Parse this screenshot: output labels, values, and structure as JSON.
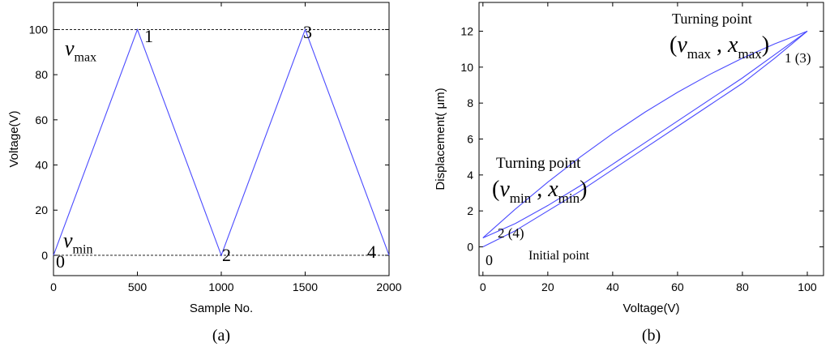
{
  "chart_data": [
    {
      "type": "line",
      "x": [
        0,
        500,
        1000,
        1500,
        2000
      ],
      "series": [
        {
          "color": "#4a4aff",
          "values": [
            0,
            100,
            0,
            100,
            0
          ]
        }
      ],
      "xlim": [
        0,
        2000
      ],
      "ylim": [
        -9,
        112
      ],
      "xticks": [
        0,
        500,
        1000,
        1500,
        2000
      ],
      "yticks": [
        0,
        20,
        40,
        60,
        80,
        100
      ],
      "hlines": [
        100,
        0
      ],
      "xlabel": "Sample No.",
      "ylabel": "Voltage(V)",
      "caption": "(a)",
      "annotations": [
        {
          "segments": [
            {
              "text": "1"
            }
          ]
        },
        {
          "segments": [
            {
              "text": "2"
            }
          ]
        },
        {
          "segments": [
            {
              "text": "3"
            }
          ]
        },
        {
          "segments": [
            {
              "text": "4"
            }
          ]
        },
        {
          "segments": [
            {
              "text": "0"
            }
          ]
        },
        {
          "segments": [
            {
              "text": "v",
              "style": "italic"
            },
            {
              "text": "max",
              "style": "sub"
            }
          ]
        },
        {
          "segments": [
            {
              "text": "v",
              "style": "italic"
            },
            {
              "text": "min",
              "style": "sub"
            }
          ]
        }
      ]
    },
    {
      "type": "line",
      "series": [
        {
          "color": "#4a4aff",
          "x": [
            0,
            10,
            20,
            30,
            40,
            50,
            60,
            70,
            80,
            90,
            100
          ],
          "values": [
            0,
            0.9,
            2.0,
            3.1,
            4.3,
            5.5,
            6.7,
            7.9,
            9.1,
            10.5,
            12
          ]
        },
        {
          "color": "#4a4aff",
          "x": [
            100,
            90,
            80,
            70,
            60,
            50,
            40,
            30,
            20,
            10,
            0
          ],
          "values": [
            12,
            11.3,
            10.5,
            9.6,
            8.6,
            7.5,
            6.3,
            5.0,
            3.6,
            2.1,
            0.5
          ]
        },
        {
          "color": "#4a4aff",
          "x": [
            0,
            10,
            20,
            30,
            40,
            50,
            60,
            70,
            80,
            90,
            100
          ],
          "values": [
            0.5,
            1.3,
            2.3,
            3.4,
            4.6,
            5.8,
            7.0,
            8.2,
            9.4,
            10.7,
            12
          ]
        }
      ],
      "xlim": [
        -1.2,
        105
      ],
      "ylim": [
        -1.6,
        13.6
      ],
      "xticks": [
        0,
        20,
        40,
        60,
        80,
        100
      ],
      "yticks": [
        0,
        2,
        4,
        6,
        8,
        10,
        12
      ],
      "xlabel": "Voltage(V)",
      "ylabel": "Displacement( μm)",
      "caption": "(b)",
      "annotations": [
        {
          "segments": [
            {
              "text": "Turning point"
            }
          ]
        },
        {
          "segments": [
            {
              "text": "("
            },
            {
              "text": "v",
              "style": "italic"
            },
            {
              "text": "max",
              "style": "sub"
            },
            {
              "text": " , "
            },
            {
              "text": "x",
              "style": "italic"
            },
            {
              "text": "max",
              "style": "sub"
            },
            {
              "text": ")"
            }
          ]
        },
        {
          "segments": [
            {
              "text": "1 (3)"
            }
          ]
        },
        {
          "segments": [
            {
              "text": "Turning point"
            }
          ]
        },
        {
          "segments": [
            {
              "text": "("
            },
            {
              "text": "v",
              "style": "italic"
            },
            {
              "text": "min",
              "style": "sub"
            },
            {
              "text": " , "
            },
            {
              "text": "x",
              "style": "italic"
            },
            {
              "text": "min",
              "style": "sub"
            },
            {
              "text": ")"
            }
          ]
        },
        {
          "segments": [
            {
              "text": "2 (4)"
            }
          ]
        },
        {
          "segments": [
            {
              "text": "0"
            }
          ]
        },
        {
          "segments": [
            {
              "text": "Initial point"
            }
          ]
        }
      ]
    }
  ]
}
